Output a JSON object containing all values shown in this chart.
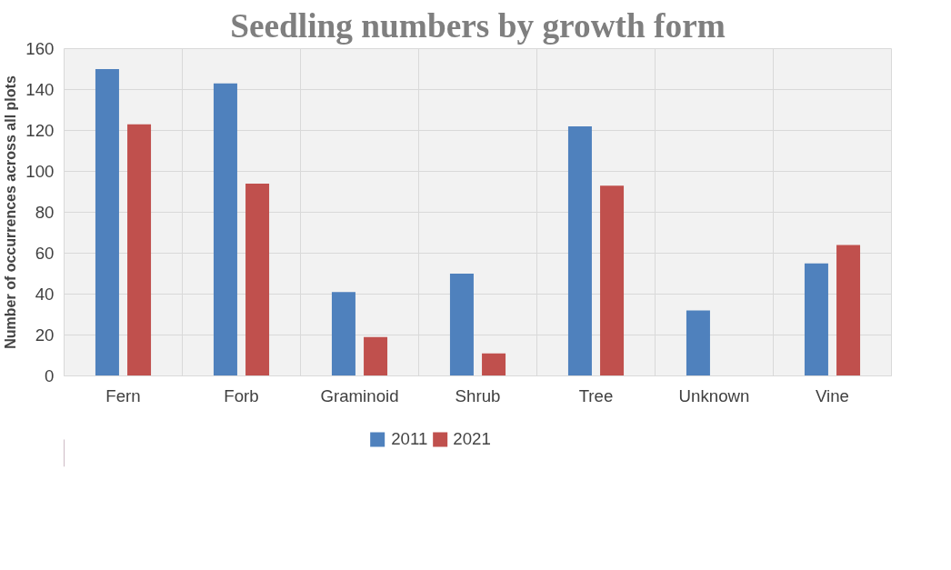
{
  "chart_data": {
    "type": "bar",
    "title": "Seedling numbers by growth form",
    "ylabel": "Number of occurrences across all plots",
    "categories": [
      "Fern",
      "Forb",
      "Graminoid",
      "Shrub",
      "Tree",
      "Unknown",
      "Vine"
    ],
    "series": [
      {
        "name": "2011",
        "color": "#4f81bd",
        "values": [
          150,
          143,
          41,
          50,
          122,
          32,
          55
        ]
      },
      {
        "name": "2021",
        "color": "#c0504d",
        "values": [
          123,
          94,
          19,
          11,
          93,
          0,
          64
        ]
      }
    ],
    "ylim": [
      0,
      160
    ],
    "yticks": [
      0,
      20,
      40,
      60,
      80,
      100,
      120,
      140,
      160
    ],
    "grid": true,
    "legend": "bottom"
  }
}
